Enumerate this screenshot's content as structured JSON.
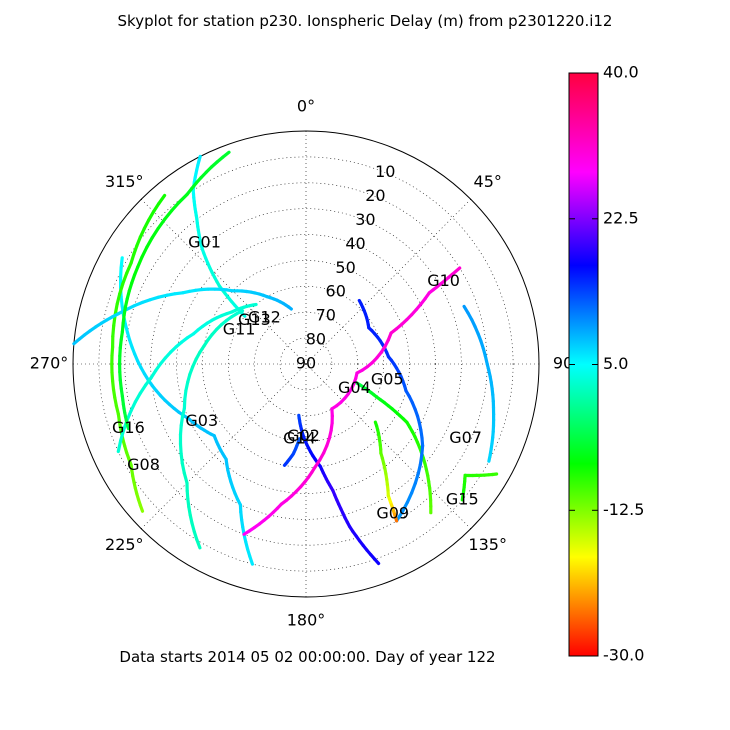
{
  "title": "Skyplot for station p230.   Ionspheric Delay (m) from p2301220.i12",
  "footer": "Data starts 2014 05 02 00:00:00.  Day of year 122",
  "chart_data": {
    "type": "scatter",
    "projection": "polar",
    "title": "Skyplot for station p230.   Ionspheric Delay (m) from p2301220.i12",
    "azimuth_ticks": [
      "0°",
      "45°",
      "90",
      "135°",
      "180°",
      "225°",
      "270°",
      "315°"
    ],
    "elevation_ticks": [
      "10",
      "20",
      "30",
      "40",
      "50",
      "60",
      "70",
      "80",
      "90"
    ],
    "grid": true,
    "colorbar": {
      "min": -30.0,
      "max": 40.0,
      "tick_labels": [
        "40.0",
        "22.5",
        "5.0",
        "-12.5",
        "-30.0"
      ],
      "colormap": "gist_rainbow",
      "placement": "right"
    },
    "satellites": [
      {
        "name": "G01",
        "label_az": 320,
        "label_el": 29,
        "track": [
          [
            333,
            0,
            8
          ],
          [
            327,
            10,
            7
          ],
          [
            323,
            20,
            6
          ],
          [
            318,
            30,
            6
          ],
          [
            312,
            45,
            5
          ],
          [
            308,
            60,
            6
          ]
        ]
      },
      {
        "name": "G02",
        "label_az": 182,
        "label_el": 62,
        "track": [
          [
            188,
            70,
            16
          ],
          [
            182,
            62,
            18
          ],
          [
            172,
            50,
            20
          ],
          [
            168,
            40,
            22
          ],
          [
            165,
            25,
            21
          ],
          [
            160,
            8,
            20
          ]
        ]
      },
      {
        "name": "G03",
        "label_az": 241,
        "label_el": 44,
        "track": [
          [
            300,
            8,
            7
          ],
          [
            280,
            20,
            8
          ],
          [
            262,
            30,
            9
          ],
          [
            245,
            40,
            10
          ],
          [
            232,
            45,
            10
          ],
          [
            220,
            42,
            10
          ],
          [
            205,
            30,
            9
          ],
          [
            195,
            10,
            8
          ]
        ]
      },
      {
        "name": "G04",
        "label_az": 117,
        "label_el": 69,
        "track": [
          [
            140,
            15,
            -10
          ],
          [
            130,
            30,
            -8
          ],
          [
            120,
            45,
            -6
          ],
          [
            115,
            60,
            -4
          ],
          [
            110,
            70,
            -2
          ]
        ]
      },
      {
        "name": "G05",
        "label_az": 101,
        "label_el": 58,
        "track": [
          [
            150,
            20,
            12
          ],
          [
            125,
            35,
            14
          ],
          [
            105,
            50,
            15
          ],
          [
            85,
            58,
            17
          ],
          [
            60,
            62,
            18
          ],
          [
            40,
            58,
            18
          ]
        ]
      },
      {
        "name": "G07",
        "label_az": 115,
        "label_el": 22,
        "track": [
          [
            70,
            25,
            12
          ],
          [
            90,
            20,
            11
          ],
          [
            105,
            15,
            10
          ],
          [
            118,
            10,
            9
          ]
        ]
      },
      {
        "name": "G08",
        "label_az": 238,
        "label_el": 16,
        "track": [
          [
            320,
            5,
            -6
          ],
          [
            300,
            12,
            -7
          ],
          [
            275,
            15,
            -8
          ],
          [
            255,
            15,
            -9
          ],
          [
            240,
            12,
            -10
          ],
          [
            228,
            5,
            -12
          ]
        ]
      },
      {
        "name": "G09",
        "label_az": 150,
        "label_el": 23,
        "track": [
          [
            150,
            20,
            -25
          ],
          [
            148,
            30,
            -16
          ],
          [
            140,
            45,
            -10
          ],
          [
            130,
            55,
            -6
          ]
        ]
      },
      {
        "name": "G10",
        "label_az": 59,
        "label_el": 28,
        "track": [
          [
            200,
            20,
            32
          ],
          [
            190,
            35,
            33
          ],
          [
            175,
            50,
            34
          ],
          [
            150,
            70,
            33
          ],
          [
            100,
            70,
            33
          ],
          [
            70,
            55,
            34
          ],
          [
            60,
            35,
            33
          ],
          [
            58,
            20,
            34
          ]
        ]
      },
      {
        "name": "G11",
        "label_az": 297,
        "label_el": 61,
        "track": [
          [
            275,
            0,
            10
          ],
          [
            285,
            15,
            9
          ],
          [
            300,
            35,
            8
          ],
          [
            315,
            50,
            9
          ],
          [
            330,
            60,
            10
          ],
          [
            345,
            68,
            11
          ]
        ]
      },
      {
        "name": "G12",
        "label_az": 318,
        "label_el": 66,
        "track": [
          [
            245,
            10,
            5
          ],
          [
            265,
            30,
            5
          ],
          [
            285,
            45,
            6
          ],
          [
            305,
            55,
            5
          ],
          [
            320,
            60,
            5
          ]
        ]
      },
      {
        "name": "G13",
        "label_az": 310,
        "label_el": 64,
        "track": [
          [
            210,
            8,
            4
          ],
          [
            225,
            25,
            4
          ],
          [
            250,
            40,
            5
          ],
          [
            280,
            50,
            4
          ],
          [
            310,
            58,
            5
          ]
        ]
      },
      {
        "name": "G14",
        "label_az": 185,
        "label_el": 61,
        "track": [
          [
            185,
            61,
            15
          ],
          [
            188,
            55,
            16
          ],
          [
            192,
            50,
            17
          ]
        ]
      },
      {
        "name": "G15",
        "label_az": 131,
        "label_el": 10,
        "track": [
          [
            120,
            5,
            -8
          ],
          [
            125,
            15,
            -7
          ],
          [
            131,
            10,
            -6
          ]
        ]
      },
      {
        "name": "G16",
        "label_az": 250,
        "label_el": 17,
        "track": [
          [
            340,
            3,
            -3
          ],
          [
            325,
            10,
            -4
          ],
          [
            300,
            15,
            -5
          ],
          [
            280,
            18,
            -4
          ],
          [
            260,
            18,
            -3
          ],
          [
            250,
            17,
            -2
          ]
        ]
      }
    ]
  }
}
